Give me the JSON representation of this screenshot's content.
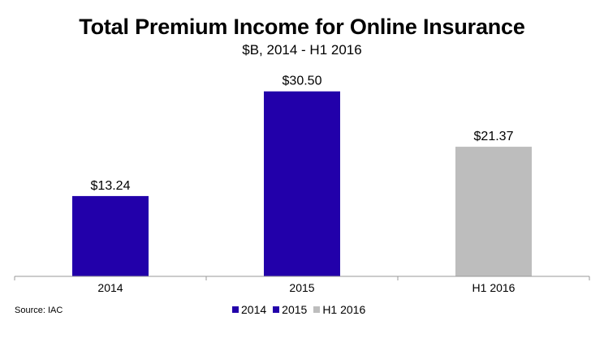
{
  "source": "Source: IAC",
  "colors": {
    "2014": "#2200aa",
    "2015": "#2200aa",
    "H1 2016": "#bdbdbd",
    "axis": "#999999"
  },
  "chart_data": {
    "type": "bar",
    "title": "Total Premium Income for Online Insurance",
    "subtitle": "$B, 2014 - H1 2016",
    "categories": [
      "2014",
      "2015",
      "H1 2016"
    ],
    "values": [
      13.24,
      30.5,
      21.37
    ],
    "data_labels": [
      "$13.24",
      "$30.50",
      "$21.37"
    ],
    "ylim": [
      0,
      31
    ],
    "grid": false,
    "legend": {
      "position": "bottom",
      "entries": [
        "2014",
        "2015",
        "H1 2016"
      ]
    }
  }
}
